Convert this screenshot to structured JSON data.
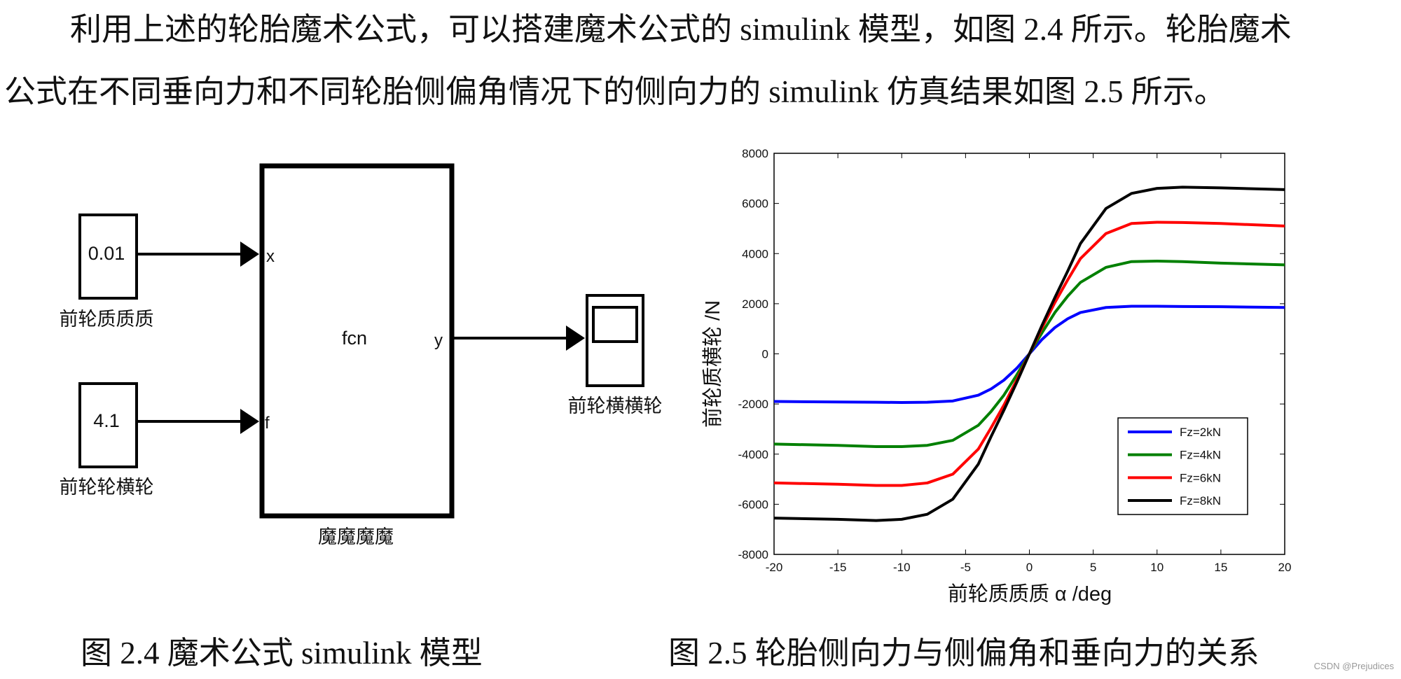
{
  "paragraph": {
    "lines": [
      "利用上述的轮胎魔术公式，可以搭建魔术公式的 simulink 模型，如图 2.4 所示。轮胎魔术",
      "公式在不同垂向力和不同轮胎侧偏角情况下的侧向力的 simulink 仿真结果如图 2.5 所示。"
    ]
  },
  "diagram": {
    "blocks": [
      {
        "value": "0.01",
        "label": "前轮质质质"
      },
      {
        "value": "4.1",
        "label": "前轮轮横轮"
      },
      {
        "value": "fcn",
        "label": "魔魔魔魔",
        "ports": [
          "x",
          "f",
          "y"
        ]
      },
      {
        "label": "前轮横横轮"
      }
    ]
  },
  "chart_data": {
    "type": "line",
    "xlabel": "前轮质质质  α /deg",
    "ylabel": "前轮质横轮      /N",
    "x": [
      -20,
      -15,
      -12,
      -10,
      -8,
      -6,
      -4,
      -3,
      -2,
      -1,
      0,
      1,
      2,
      3,
      4,
      6,
      8,
      10,
      12,
      15,
      20
    ],
    "series": [
      {
        "name": "Fz=2kN",
        "color": "#0000ff",
        "values": [
          -1900,
          -1920,
          -1930,
          -1940,
          -1930,
          -1880,
          -1650,
          -1400,
          -1050,
          -580,
          0,
          580,
          1050,
          1400,
          1650,
          1850,
          1900,
          1900,
          1890,
          1880,
          1850
        ]
      },
      {
        "name": "Fz=4kN",
        "color": "#008000",
        "values": [
          -3600,
          -3650,
          -3700,
          -3700,
          -3650,
          -3450,
          -2850,
          -2300,
          -1650,
          -850,
          0,
          850,
          1650,
          2300,
          2850,
          3450,
          3680,
          3700,
          3680,
          3620,
          3550
        ]
      },
      {
        "name": "Fz=6kN",
        "color": "#ff0000",
        "values": [
          -5150,
          -5200,
          -5250,
          -5250,
          -5150,
          -4800,
          -3800,
          -2950,
          -2050,
          -1050,
          0,
          1050,
          2050,
          2950,
          3800,
          4800,
          5200,
          5250,
          5240,
          5200,
          5100
        ]
      },
      {
        "name": "Fz=8kN",
        "color": "#000000",
        "values": [
          -6550,
          -6600,
          -6650,
          -6600,
          -6400,
          -5800,
          -4400,
          -3300,
          -2250,
          -1150,
          0,
          1150,
          2250,
          3300,
          4400,
          5800,
          6400,
          6600,
          6650,
          6620,
          6550
        ]
      }
    ],
    "xlim": [
      -20,
      20
    ],
    "xticks": [
      -20,
      -15,
      -10,
      -5,
      0,
      5,
      10,
      15,
      20
    ],
    "ylim": [
      -8000,
      8000
    ],
    "yticks": [
      -8000,
      -6000,
      -4000,
      -2000,
      0,
      2000,
      4000,
      6000,
      8000
    ],
    "legend": "lower right"
  },
  "captions": [
    "图 2.4  魔术公式 simulink 模型",
    "图  2.5  轮胎侧向力与侧偏角和垂向力的关系"
  ],
  "watermark": "CSDN @Prejudices"
}
